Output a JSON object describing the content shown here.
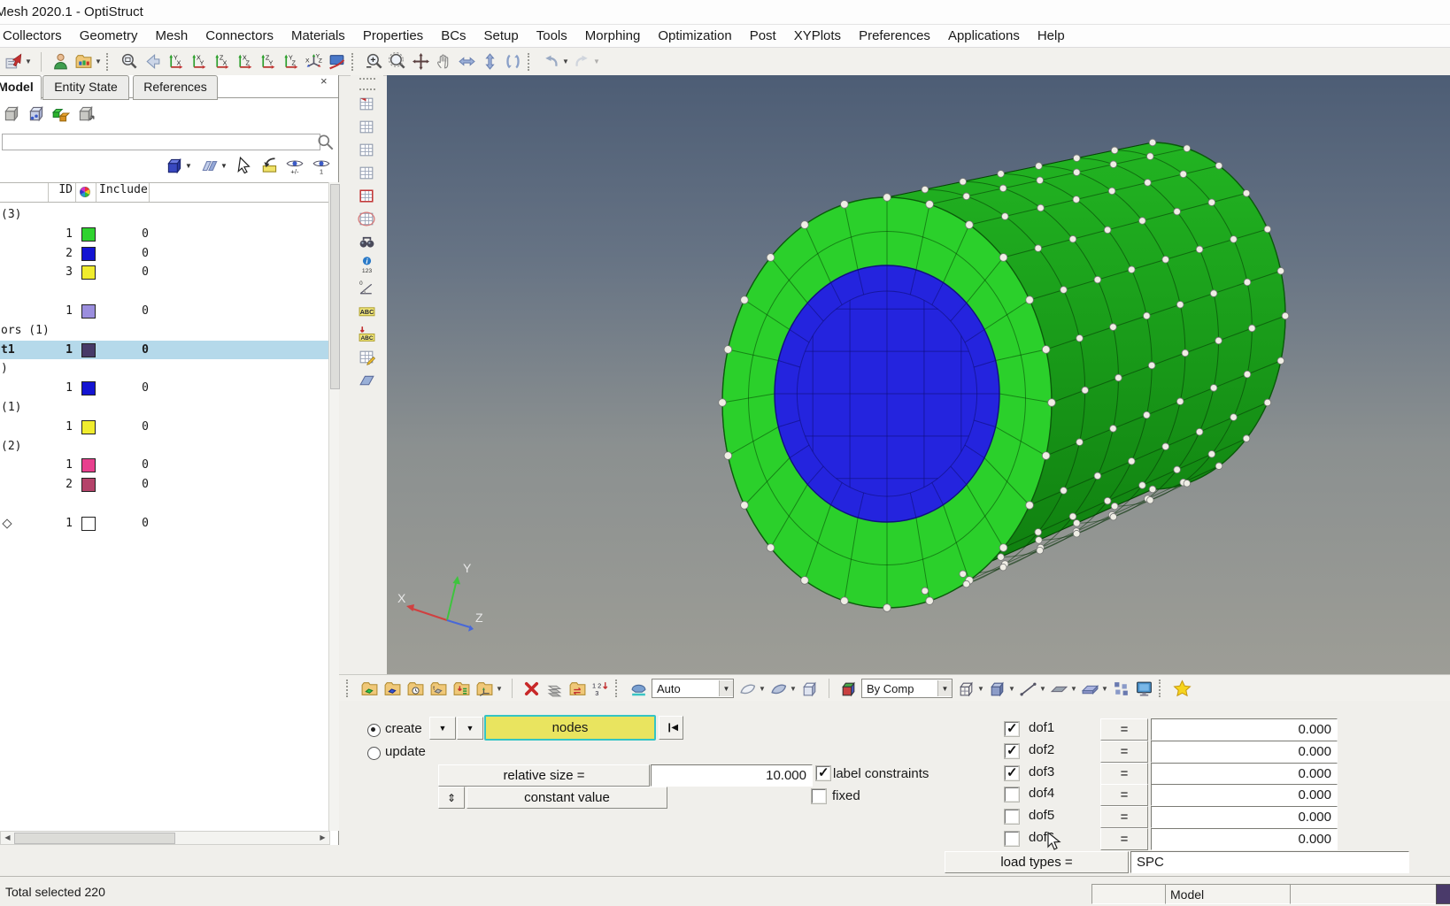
{
  "window": {
    "title": "Mesh 2020.1 - OptiStruct"
  },
  "menu": {
    "items": [
      "Collectors",
      "Geometry",
      "Mesh",
      "Connectors",
      "Materials",
      "Properties",
      "BCs",
      "Setup",
      "Tools",
      "Morphing",
      "Optimization",
      "Post",
      "XYPlots",
      "Preferences",
      "Applications",
      "Help"
    ]
  },
  "toolbar": {
    "icons": [
      {
        "n": "open-model-icon",
        "g": "import",
        "dd": true
      },
      {
        "g": "sepline"
      },
      {
        "n": "user-profile-icon",
        "g": "person"
      },
      {
        "n": "open-folder-icon",
        "g": "folder",
        "dd": true
      },
      {
        "g": "sepdots"
      },
      {
        "n": "fit-view-icon",
        "g": "magfit"
      },
      {
        "n": "previous-view-icon",
        "g": "arrowleft"
      },
      {
        "n": "view-yx-icon",
        "g": "axis",
        "a": "Y",
        "b": "X"
      },
      {
        "n": "view-xy-icon",
        "g": "axis",
        "a": "X",
        "b": "Y"
      },
      {
        "n": "view-zx-icon",
        "g": "axis",
        "a": "Z",
        "b": "X"
      },
      {
        "n": "view-xz-icon",
        "g": "axis",
        "a": "X",
        "b": "Z"
      },
      {
        "n": "view-zy-icon",
        "g": "axis",
        "a": "Z",
        "b": "Y"
      },
      {
        "n": "view-yz-icon",
        "g": "axis",
        "a": "Y",
        "b": "Z"
      },
      {
        "n": "view-iso-icon",
        "g": "axisiso"
      },
      {
        "n": "screen-display-icon",
        "g": "display"
      },
      {
        "g": "sepdots"
      },
      {
        "n": "zoom-icon",
        "g": "magpm"
      },
      {
        "n": "circle-zoom-icon",
        "g": "magcircle"
      },
      {
        "n": "pan-icon",
        "g": "cross"
      },
      {
        "n": "hand-pan-icon",
        "g": "hand"
      },
      {
        "n": "dynamic-rotate-h-icon",
        "g": "dblh"
      },
      {
        "n": "dynamic-rotate-v-icon",
        "g": "dblv"
      },
      {
        "n": "dynamic-spin-icon",
        "g": "rotate"
      },
      {
        "g": "sepdots"
      },
      {
        "n": "undo-view-icon",
        "g": "undo",
        "dd": true
      },
      {
        "n": "redo-view-icon",
        "g": "redo",
        "dd": true,
        "dis": true
      }
    ]
  },
  "left_panel": {
    "tabs": [
      {
        "id": "model",
        "label": "Model",
        "active": true
      },
      {
        "id": "entity-state",
        "label": "Entity State",
        "active": false
      },
      {
        "id": "references",
        "label": "References",
        "active": false
      }
    ],
    "close_glyph": "×",
    "model_icons": [
      {
        "n": "display-model-icon",
        "g": "cubegrey"
      },
      {
        "n": "display-assembly-icon",
        "g": "cubeballs"
      },
      {
        "n": "display-components-icon",
        "g": "cubes2"
      },
      {
        "n": "import-model-icon",
        "g": "cubearrow"
      }
    ],
    "search_placeholder": "",
    "view_icons": [
      {
        "n": "entity-cube-icon",
        "g": "cube3d",
        "dd": true
      },
      {
        "n": "display-planes-icon",
        "g": "planes",
        "dd": true
      },
      {
        "n": "selector-arrow-icon",
        "g": "cursor"
      },
      {
        "n": "idle-import-icon",
        "g": "importsmall"
      },
      {
        "n": "show-hide-eye-icon",
        "g": "eyepm"
      },
      {
        "n": "isolate-eye-icon",
        "g": "eye1"
      }
    ],
    "header": {
      "id": "ID",
      "include": "Include"
    },
    "rows": [
      {
        "kind": "category",
        "label": "(3)"
      },
      {
        "kind": "item",
        "id": "1",
        "color": "#2fd32f",
        "include": "0"
      },
      {
        "kind": "item",
        "id": "2",
        "color": "#1414d2",
        "include": "0"
      },
      {
        "kind": "item",
        "id": "3",
        "color": "#f0ec2e",
        "include": "0"
      },
      {
        "kind": "category",
        "label": ""
      },
      {
        "kind": "item",
        "id": "1",
        "color": "#9b8ede",
        "include": "0"
      },
      {
        "kind": "category",
        "label": "ors  (1)"
      },
      {
        "kind": "item",
        "label": "t1",
        "id": "1",
        "color": "#473a68",
        "include": "0",
        "selected": true
      },
      {
        "kind": "category",
        "label": ")"
      },
      {
        "kind": "item",
        "id": "1",
        "color": "#1414d2",
        "include": "0"
      },
      {
        "kind": "category",
        "label": "(1)"
      },
      {
        "kind": "item",
        "id": "1",
        "color": "#f0ec2e",
        "include": "0"
      },
      {
        "kind": "category",
        "label": "(2)"
      },
      {
        "kind": "item",
        "id": "1",
        "color": "#e8408e",
        "include": "0"
      },
      {
        "kind": "item",
        "id": "2",
        "color": "#b4436a",
        "include": "0"
      },
      {
        "kind": "category",
        "label": ""
      },
      {
        "kind": "item",
        "id": "1",
        "color": "#ffffff",
        "include": "0",
        "prefix": "diamond"
      }
    ]
  },
  "vtoolbar": {
    "icons": [
      {
        "n": "utility-grid-flag-icon",
        "g": "gridflag"
      },
      {
        "n": "utility-grid-icon-1",
        "g": "grid"
      },
      {
        "n": "utility-grid-icon-2",
        "g": "grid"
      },
      {
        "n": "utility-grid-icon-3",
        "g": "grid"
      },
      {
        "n": "utility-grid-red-icon",
        "g": "gridred"
      },
      {
        "n": "utility-grid-circle-icon",
        "g": "gridcircle"
      },
      {
        "n": "find-binoculars-icon",
        "g": "binoculars"
      },
      {
        "n": "count-info-icon",
        "g": "info123"
      },
      {
        "n": "measure-angle-icon",
        "g": "measure"
      },
      {
        "n": "label-abc-icon",
        "g": "abc"
      },
      {
        "n": "label-abc-import-icon",
        "g": "abcarrow"
      },
      {
        "n": "notes-icon",
        "g": "gridnote"
      },
      {
        "n": "section-plane-icon",
        "g": "plane"
      }
    ]
  },
  "viewport": {
    "outer_color": "#2bd02b",
    "body_color_top": "#22b422",
    "body_color_bottom": "#0e7a0e",
    "inner_color": "#2424de",
    "node_color": "#efeee5",
    "axis_labels": {
      "x": "X",
      "y": "Y",
      "z": "Z"
    }
  },
  "bottom_toolbar": {
    "auto_value": "Auto",
    "bycomp_value": "By Comp",
    "icons": [
      {
        "g": "sepdots"
      },
      {
        "n": "folder-green-cube-icon",
        "g": "foldergreen"
      },
      {
        "n": "folder-blue-cube-icon",
        "g": "folderblue"
      },
      {
        "n": "folder-history-icon",
        "g": "folderclock"
      },
      {
        "n": "folder-translate-icon",
        "g": "foldert"
      },
      {
        "n": "folder-import-icon",
        "g": "folderimport"
      },
      {
        "n": "systems-icon",
        "g": "folderaxis",
        "dd": true
      },
      {
        "g": "sepline"
      },
      {
        "n": "delete-icon",
        "g": "redx"
      },
      {
        "n": "layers-icon",
        "g": "layers"
      },
      {
        "n": "organize-folder-icon",
        "g": "folderarrows"
      },
      {
        "n": "renumber-icon",
        "g": "renumber"
      },
      {
        "g": "sepdots"
      },
      {
        "n": "color-by-icon",
        "g": "paint"
      },
      {
        "combo": "auto_value",
        "n": "color-mode-select",
        "w": 86
      },
      {
        "n": "geometry-shade-icon",
        "g": "shell",
        "dd": true
      },
      {
        "n": "element-shade-icon",
        "g": "shell2",
        "dd": true
      },
      {
        "n": "visualization-cube-icon",
        "g": "cubelight"
      },
      {
        "g": "sepline"
      },
      {
        "n": "bycomp-cube-icon",
        "g": "cubecolor"
      },
      {
        "combo": "bycomp_value",
        "n": "mesh-style-select",
        "w": 96
      },
      {
        "n": "wireframe-elements-icon",
        "g": "cubewire",
        "dd": true
      },
      {
        "n": "shaded-elements-icon",
        "g": "cubesolid",
        "dd": true
      },
      {
        "n": "1d-elements-icon",
        "g": "line1d",
        "dd": true
      },
      {
        "n": "2d-elements-icon",
        "g": "flat2d",
        "dd": true
      },
      {
        "n": "3d-elements-icon",
        "g": "flat3d",
        "dd": true
      },
      {
        "n": "parts-icon",
        "g": "parts"
      },
      {
        "n": "performance-graphics-icon",
        "g": "monitor"
      },
      {
        "g": "sepdots"
      },
      {
        "n": "favorites-icon",
        "g": "star"
      }
    ]
  },
  "panel": {
    "create_label": "create",
    "update_label": "update",
    "entity_value": "nodes",
    "reset_glyph": "❙◀",
    "relative_size_label": "relative size =",
    "relative_size_value": "10.000",
    "constant_value_label": "constant value",
    "spinner_glyph": "⇕",
    "label_constraints_label": "label constraints",
    "fixed_label": "fixed",
    "equals_label": "=",
    "dofs": [
      {
        "label": "dof1",
        "checked": true,
        "value": "0.000"
      },
      {
        "label": "dof2",
        "checked": true,
        "value": "0.000"
      },
      {
        "label": "dof3",
        "checked": true,
        "value": "0.000"
      },
      {
        "label": "dof4",
        "checked": false,
        "value": "0.000"
      },
      {
        "label": "dof5",
        "checked": false,
        "value": "0.000"
      },
      {
        "label": "dof6",
        "checked": false,
        "value": "0.000"
      }
    ],
    "load_types_label": "load types =",
    "load_types_value": "SPC"
  },
  "statusbar": {
    "left_text": "Total selected 220",
    "model_label": "Model",
    "swatch_color": "#4a3a6a"
  }
}
